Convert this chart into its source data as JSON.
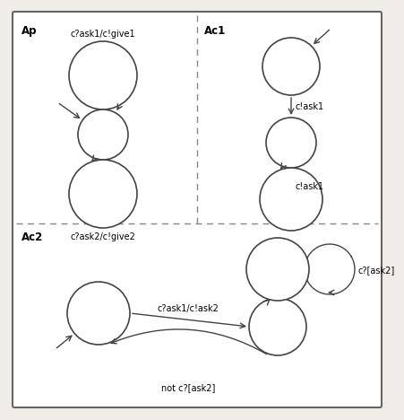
{
  "bg_color": "#f0ede8",
  "border_color": "#555555",
  "node_color": "white",
  "node_edge_color": "#444444",
  "ap_label": "Ap",
  "ac1_label": "Ac1",
  "ac2_label": "Ac2",
  "ap_label1": "c?ask1/c!give1",
  "ap_label2": "c?ask2/c!give2",
  "ac1_label1": "c!ask1",
  "ac1_label2": "c!ask1",
  "ac2_label1": "c?ask1/c!ask2",
  "ac2_label2": "not c?[ask2]",
  "ac2_label3": "c?[ask2]",
  "font_size": 7.0,
  "label_font_size": 8.5
}
